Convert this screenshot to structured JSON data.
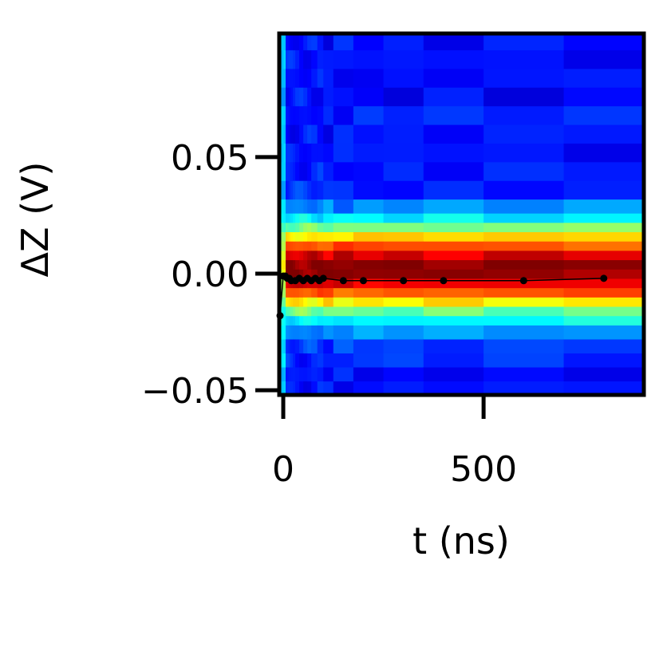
{
  "chart_data": {
    "type": "heatmap",
    "title": "",
    "xlabel": "t (ns)",
    "ylabel": "ΔZ (V)",
    "xlim": [
      -10,
      900
    ],
    "ylim": [
      -0.052,
      0.103
    ],
    "xticks": [
      {
        "value": 0,
        "label": "0"
      },
      {
        "value": 500,
        "label": "500"
      }
    ],
    "yticks": [
      {
        "value": -0.05,
        "label": "−0.05"
      },
      {
        "value": 0.0,
        "label": "0.00"
      },
      {
        "value": 0.05,
        "label": "0.05"
      }
    ],
    "colormap": "jet",
    "grid": false,
    "x_bin_edges": [
      -10,
      -2,
      2,
      6,
      10,
      14,
      18,
      24,
      30,
      40,
      50,
      60,
      70,
      85,
      100,
      125,
      175,
      250,
      350,
      500,
      700,
      900
    ],
    "y_bin_edges": [
      -0.052,
      -0.046,
      -0.04,
      -0.034,
      -0.028,
      -0.022,
      -0.018,
      -0.014,
      -0.01,
      -0.006,
      -0.002,
      0.002,
      0.006,
      0.01,
      0.014,
      0.018,
      0.022,
      0.026,
      0.032,
      0.04,
      0.048,
      0.056,
      0.064,
      0.072,
      0.08,
      0.088,
      0.096,
      0.103
    ],
    "mean_trace": {
      "color": "#000000",
      "x": [
        -8,
        0,
        5,
        10,
        15,
        20,
        30,
        40,
        50,
        60,
        70,
        80,
        90,
        100,
        150,
        200,
        300,
        400,
        600,
        800
      ],
      "y": [
        -0.018,
        -0.001,
        -0.001,
        -0.002,
        -0.002,
        -0.003,
        -0.003,
        -0.002,
        -0.003,
        -0.002,
        -0.003,
        -0.002,
        -0.003,
        -0.002,
        -0.003,
        -0.003,
        -0.003,
        -0.003,
        -0.003,
        -0.002
      ]
    }
  }
}
